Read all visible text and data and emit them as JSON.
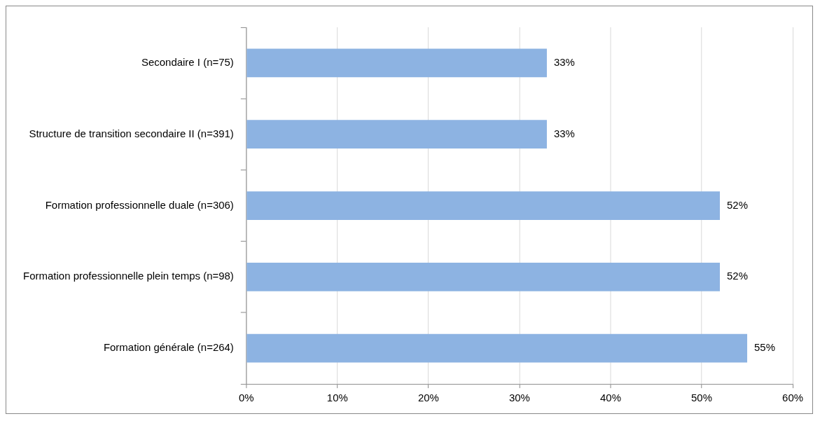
{
  "chart_data": {
    "type": "bar",
    "orientation": "horizontal",
    "categories": [
      "Secondaire I (n=75)",
      "Structure de transition secondaire II (n=391)",
      "Formation professionnelle duale (n=306)",
      "Formation professionnelle plein temps (n=98)",
      "Formation générale (n=264)"
    ],
    "values": [
      33,
      33,
      52,
      52,
      55
    ],
    "value_labels": [
      "33%",
      "33%",
      "52%",
      "52%",
      "55%"
    ],
    "color": "#8db3e2",
    "xlim": [
      0,
      60
    ],
    "xticks": [
      {
        "value": 0,
        "label": "0%"
      },
      {
        "value": 10,
        "label": "10%"
      },
      {
        "value": 20,
        "label": "20%"
      },
      {
        "value": 30,
        "label": "30%"
      },
      {
        "value": 40,
        "label": "40%"
      },
      {
        "value": 50,
        "label": "50%"
      },
      {
        "value": 60,
        "label": "60%"
      }
    ],
    "grid": "x",
    "legend": false
  }
}
